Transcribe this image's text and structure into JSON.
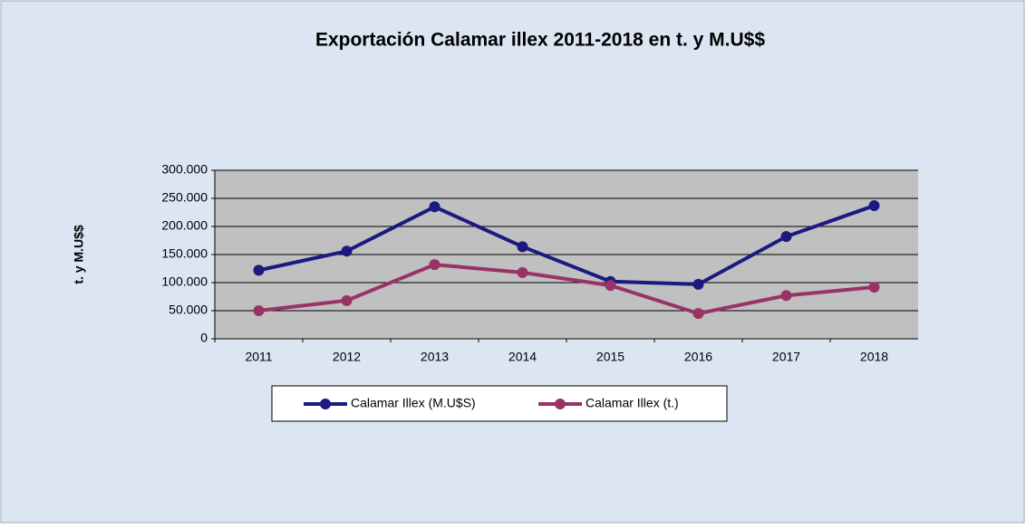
{
  "chart_data": {
    "type": "line",
    "title": "Exportación Calamar illex 2011-2018 en t. y M.U$$",
    "ylabel": "t. y M.U$$",
    "categories": [
      "2011",
      "2012",
      "2013",
      "2014",
      "2015",
      "2016",
      "2017",
      "2018"
    ],
    "series": [
      {
        "name": "Calamar Illex (M.U$S)",
        "color": "#1a1a80",
        "values": [
          122000,
          156000,
          235000,
          164000,
          102000,
          97000,
          182000,
          237000
        ]
      },
      {
        "name": "Calamar Illex (t.)",
        "color": "#993366",
        "values": [
          50000,
          68000,
          132000,
          118000,
          95000,
          45000,
          77000,
          92000
        ]
      }
    ],
    "ylim": [
      0,
      300000
    ],
    "yticks": [
      0,
      {
        "value": 50000,
        "label": "50.000"
      },
      {
        "value": 100000,
        "label": "100.000"
      },
      {
        "value": 150000,
        "label": "150.000"
      },
      {
        "value": 200000,
        "label": "200.000"
      },
      {
        "value": 250000,
        "label": "250.000"
      },
      {
        "value": 300000,
        "label": "300.000"
      }
    ],
    "grid": true,
    "legend": "bottom"
  }
}
